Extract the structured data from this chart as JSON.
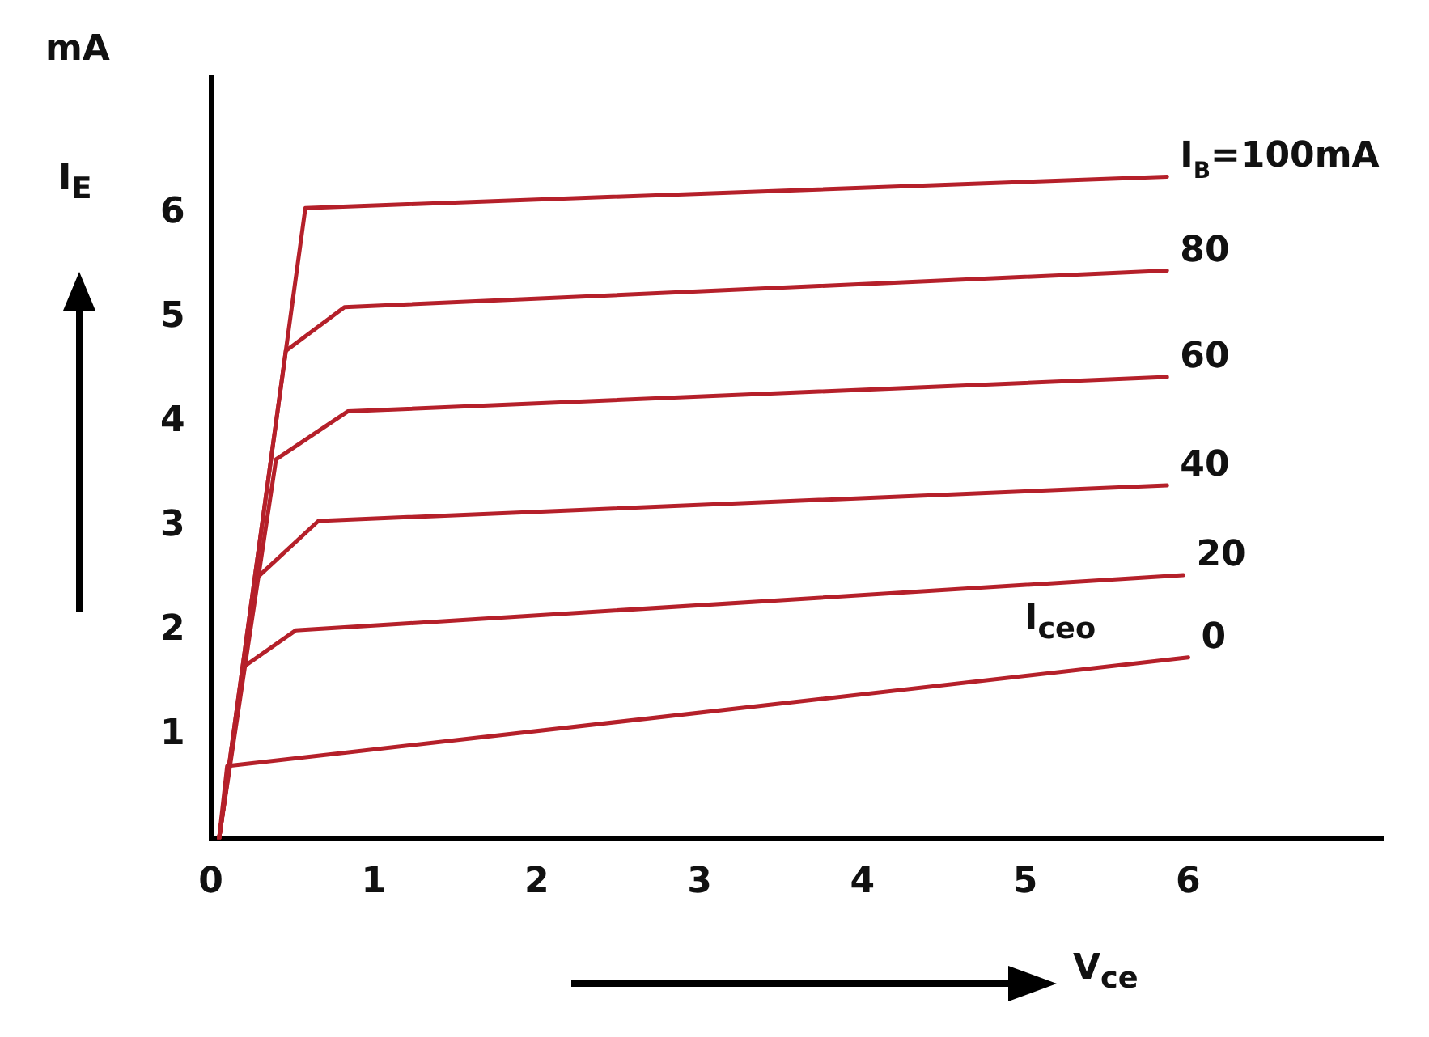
{
  "chart_data": {
    "type": "line",
    "xlabel": "V$_{ce}$",
    "ylabel": "I$_{E}$",
    "xlim": [
      0,
      7.2
    ],
    "ylim": [
      0,
      7.3
    ],
    "xticks": [
      0,
      1,
      2,
      3,
      4,
      5,
      6
    ],
    "yticks": [
      1,
      2,
      3,
      4,
      5,
      6
    ],
    "grid": false,
    "legend": false,
    "marker": "none",
    "line_style": "solid",
    "annotations": [
      "mA",
      "I$_{ceo}$"
    ],
    "series": [
      {
        "name": "I$_{B}$=100mA",
        "color": "#b5202a",
        "x": [
          0.05,
          0.58,
          5.87
        ],
        "values": [
          0,
          6.05,
          6.35
        ]
      },
      {
        "name": "80",
        "color": "#b5202a",
        "x": [
          0.05,
          0.46,
          0.82,
          5.87
        ],
        "values": [
          0,
          4.68,
          5.1,
          5.45
        ]
      },
      {
        "name": "60",
        "color": "#b5202a",
        "x": [
          0.05,
          0.4,
          0.84,
          5.87
        ],
        "values": [
          0,
          3.64,
          4.1,
          4.43
        ]
      },
      {
        "name": "40",
        "color": "#b5202a",
        "x": [
          0.05,
          0.28,
          0.66,
          5.87
        ],
        "values": [
          0,
          2.5,
          3.05,
          3.39
        ]
      },
      {
        "name": "20",
        "color": "#b5202a",
        "x": [
          0.05,
          0.2,
          0.52,
          5.97
        ],
        "values": [
          0,
          1.65,
          2.0,
          2.53
        ]
      },
      {
        "name": "0",
        "color": "#b5202a",
        "x": [
          0.05,
          0.1,
          6.0
        ],
        "values": [
          0,
          0.7,
          1.74
        ]
      }
    ]
  }
}
